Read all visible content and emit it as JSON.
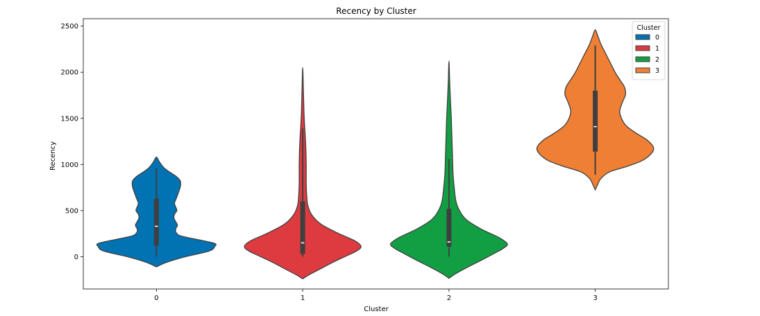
{
  "chart_data": {
    "type": "violin",
    "title": "Recency by Cluster",
    "xlabel": "Cluster",
    "ylabel": "Recency",
    "categories": [
      "0",
      "1",
      "2",
      "3"
    ],
    "ylim": [
      -350,
      2580
    ],
    "yticks": [
      0,
      500,
      1000,
      1500,
      2000,
      2500
    ],
    "grid": false,
    "legend": {
      "title": "Cluster",
      "placement": "top-right",
      "entries": [
        "0",
        "1",
        "2",
        "3"
      ]
    },
    "series": [
      {
        "category": "0",
        "color": "#0173b2",
        "density": [
          [
            -110,
            0
          ],
          [
            -60,
            0.18
          ],
          [
            0,
            0.5
          ],
          [
            60,
            0.9
          ],
          [
            110,
            1.0
          ],
          [
            150,
            0.97
          ],
          [
            220,
            0.45
          ],
          [
            260,
            0.34
          ],
          [
            300,
            0.33
          ],
          [
            340,
            0.36
          ],
          [
            380,
            0.33
          ],
          [
            420,
            0.3
          ],
          [
            460,
            0.31
          ],
          [
            500,
            0.35
          ],
          [
            540,
            0.33
          ],
          [
            580,
            0.31
          ],
          [
            630,
            0.34
          ],
          [
            700,
            0.38
          ],
          [
            760,
            0.41
          ],
          [
            820,
            0.41
          ],
          [
            870,
            0.34
          ],
          [
            920,
            0.22
          ],
          [
            970,
            0.12
          ],
          [
            1030,
            0.05
          ],
          [
            1080,
            0
          ]
        ],
        "box": {
          "q1": 120,
          "median": 330,
          "q3": 630,
          "whisker_low": 0,
          "whisker_high": 960
        }
      },
      {
        "category": "1",
        "color": "#de3b40",
        "density": [
          [
            -240,
            0
          ],
          [
            -200,
            0.1
          ],
          [
            -140,
            0.28
          ],
          [
            -60,
            0.52
          ],
          [
            0,
            0.72
          ],
          [
            60,
            0.92
          ],
          [
            110,
            1.0
          ],
          [
            170,
            0.9
          ],
          [
            250,
            0.62
          ],
          [
            350,
            0.32
          ],
          [
            450,
            0.16
          ],
          [
            550,
            0.09
          ],
          [
            650,
            0.07
          ],
          [
            800,
            0.06
          ],
          [
            1000,
            0.06
          ],
          [
            1150,
            0.055
          ],
          [
            1300,
            0.045
          ],
          [
            1450,
            0.03
          ],
          [
            1600,
            0.02
          ],
          [
            1800,
            0.012
          ],
          [
            2050,
            0
          ]
        ],
        "box": {
          "q1": 30,
          "median": 150,
          "q3": 600,
          "whisker_low": 0,
          "whisker_high": 1390
        }
      },
      {
        "category": "2",
        "color": "#129f44",
        "density": [
          [
            -235,
            0
          ],
          [
            -190,
            0.1
          ],
          [
            -120,
            0.3
          ],
          [
            -40,
            0.55
          ],
          [
            30,
            0.76
          ],
          [
            90,
            0.93
          ],
          [
            140,
            1.0
          ],
          [
            210,
            0.85
          ],
          [
            300,
            0.55
          ],
          [
            400,
            0.3
          ],
          [
            500,
            0.18
          ],
          [
            600,
            0.12
          ],
          [
            750,
            0.09
          ],
          [
            900,
            0.07
          ],
          [
            1100,
            0.06
          ],
          [
            1300,
            0.05
          ],
          [
            1500,
            0.04
          ],
          [
            1700,
            0.025
          ],
          [
            1900,
            0.012
          ],
          [
            2120,
            0
          ]
        ],
        "box": {
          "q1": 110,
          "median": 160,
          "q3": 520,
          "whisker_low": 0,
          "whisker_high": 1060
        }
      },
      {
        "category": "3",
        "color": "#ee7f34",
        "density": [
          [
            725,
            0
          ],
          [
            780,
            0.04
          ],
          [
            850,
            0.1
          ],
          [
            920,
            0.25
          ],
          [
            980,
            0.55
          ],
          [
            1040,
            0.8
          ],
          [
            1110,
            0.95
          ],
          [
            1180,
            1.0
          ],
          [
            1260,
            0.9
          ],
          [
            1340,
            0.7
          ],
          [
            1420,
            0.53
          ],
          [
            1500,
            0.45
          ],
          [
            1580,
            0.42
          ],
          [
            1680,
            0.47
          ],
          [
            1760,
            0.52
          ],
          [
            1840,
            0.5
          ],
          [
            1920,
            0.42
          ],
          [
            2000,
            0.34
          ],
          [
            2100,
            0.26
          ],
          [
            2200,
            0.18
          ],
          [
            2300,
            0.1
          ],
          [
            2400,
            0.04
          ],
          [
            2460,
            0
          ]
        ],
        "box": {
          "q1": 1140,
          "median": 1410,
          "q3": 1800,
          "whisker_low": 890,
          "whisker_high": 2290
        }
      }
    ]
  }
}
